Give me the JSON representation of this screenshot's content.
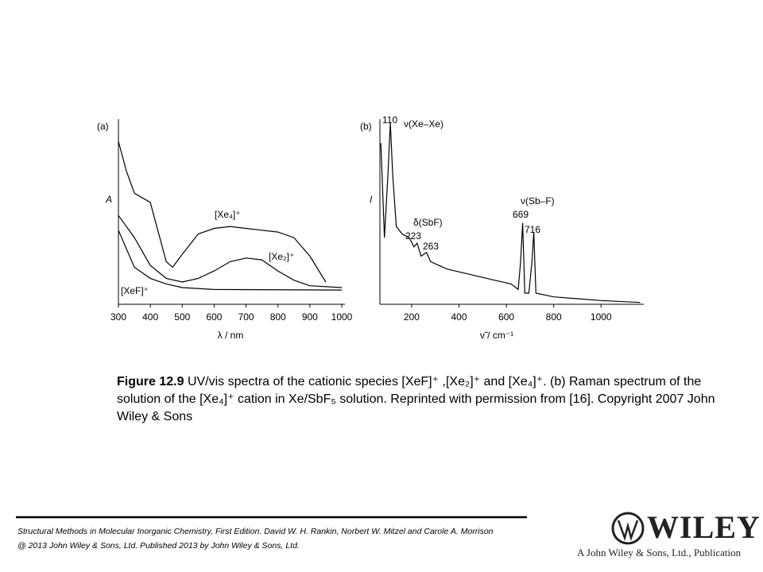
{
  "chart_data": [
    {
      "type": "line",
      "panel": "(a)",
      "ylabel": "A",
      "xlabel": "λ / nm",
      "xlim": [
        300,
        1000
      ],
      "ylim": [
        0,
        1
      ],
      "xticks": [
        300,
        400,
        500,
        600,
        700,
        800,
        900,
        1000
      ],
      "series": [
        {
          "name": "[Xe₄]⁺",
          "color": "#000000",
          "x": [
            300,
            325,
            350,
            400,
            450,
            470,
            500,
            550,
            600,
            650,
            700,
            750,
            800,
            850,
            900,
            950
          ],
          "values": [
            0.88,
            0.72,
            0.6,
            0.55,
            0.23,
            0.2,
            0.27,
            0.38,
            0.41,
            0.42,
            0.41,
            0.4,
            0.39,
            0.36,
            0.26,
            0.12
          ]
        },
        {
          "name": "[Xe₂]⁺",
          "color": "#000000",
          "x": [
            300,
            350,
            400,
            450,
            500,
            550,
            600,
            650,
            700,
            750,
            800,
            850,
            900,
            1000
          ],
          "values": [
            0.48,
            0.36,
            0.21,
            0.14,
            0.12,
            0.14,
            0.18,
            0.23,
            0.25,
            0.24,
            0.18,
            0.13,
            0.1,
            0.09
          ]
        },
        {
          "name": "[XeF]⁺",
          "color": "#000000",
          "x": [
            300,
            325,
            350,
            400,
            450,
            500,
            600,
            1000
          ],
          "values": [
            0.4,
            0.3,
            0.2,
            0.14,
            0.11,
            0.09,
            0.08,
            0.077
          ]
        }
      ]
    },
    {
      "type": "line",
      "panel": "(b)",
      "ylabel": "I",
      "xlabel": "ν̃ / cm⁻¹",
      "xlim": [
        66,
        1167
      ],
      "ylim": [
        0,
        1
      ],
      "xticks": [
        200,
        400,
        600,
        800,
        1000
      ],
      "annotations": [
        "110",
        "ν(Xe–Xe)",
        "δ(SbF)",
        "223",
        "263",
        "ν(Sb–F)",
        "669",
        "716"
      ],
      "series": [
        {
          "name": "Raman",
          "color": "#000000",
          "x": [
            70,
            85,
            100,
            110,
            120,
            135,
            160,
            190,
            210,
            223,
            240,
            263,
            280,
            350,
            450,
            550,
            620,
            650,
            660,
            669,
            678,
            695,
            708,
            716,
            725,
            800,
            900,
            1000,
            1165
          ],
          "values": [
            0.87,
            0.36,
            0.7,
            0.98,
            0.7,
            0.42,
            0.38,
            0.36,
            0.31,
            0.33,
            0.26,
            0.28,
            0.23,
            0.19,
            0.16,
            0.13,
            0.11,
            0.08,
            0.23,
            0.44,
            0.06,
            0.06,
            0.23,
            0.39,
            0.06,
            0.04,
            0.03,
            0.02,
            0.01
          ]
        }
      ]
    }
  ],
  "caption": {
    "label": "Figure 12.9",
    "text": "UV/vis spectra of the cationic species [XeF]⁺ ,[Xe₂]⁺ and [Xe₄]⁺. (b) Raman spectrum of the solution of the [Xe₄]⁺ cation in Xe/SbF₅ solution. Reprinted with permission from [16]. Copyright 2007 John Wiley & Sons"
  },
  "footer": {
    "lines": [
      "Structural Methods in Molecular Inorganic Chemistry, First Edition. David W. H. Rankin, Norbert W. Mitzel and Carole A. Morrison",
      "@ 2013 John Wiley & Sons, Ltd. Published 2013 by John Wiley & Sons, Ltd."
    ],
    "logo": "WILEY",
    "publisher": "A John Wiley & Sons, Ltd., Publication"
  }
}
